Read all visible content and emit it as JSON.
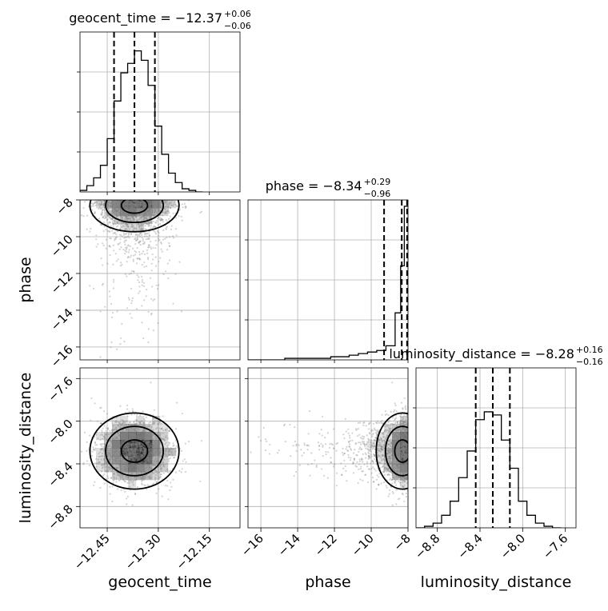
{
  "chart_data": {
    "type": "corner",
    "parameters": [
      "geocent_time",
      "phase",
      "luminosity_distance"
    ],
    "titles": [
      {
        "label": "geocent_time",
        "value": "−12.37",
        "plus": "+0.06",
        "minus": "−0.06"
      },
      {
        "label": "phase",
        "value": "−8.34",
        "plus": "+0.29",
        "minus": "−0.96"
      },
      {
        "label": "luminosity_distance",
        "value": "−8.28",
        "plus": "+0.16",
        "minus": "−0.16"
      }
    ],
    "xlabels": [
      "geocent_time",
      "phase",
      "luminosity_distance"
    ],
    "ylabels": [
      "",
      "phase",
      "luminosity_distance"
    ],
    "ranges": {
      "geocent_time": [
        -12.53,
        -12.06
      ],
      "phase": [
        -16.7,
        -8.0
      ],
      "luminosity_distance": [
        -9.0,
        -7.5
      ]
    },
    "ticks": {
      "geocent_time": [
        "−12.45",
        "−12.30",
        "−12.15"
      ],
      "phase": [
        "−16",
        "−14",
        "−12",
        "−10",
        "−8"
      ],
      "luminosity_distance": [
        "−8.8",
        "−8.4",
        "−8.0",
        "−7.6"
      ]
    },
    "tick_values": {
      "geocent_time": [
        -12.45,
        -12.3,
        -12.15
      ],
      "phase": [
        -16,
        -14,
        -12,
        -10,
        -8
      ],
      "luminosity_distance": [
        -8.8,
        -8.4,
        -8.0,
        -7.6
      ]
    },
    "quantiles": {
      "geocent_time": [
        -12.43,
        -12.37,
        -12.31
      ],
      "phase": [
        -9.3,
        -8.34,
        -8.05
      ],
      "luminosity_distance": [
        -8.44,
        -8.28,
        -8.12
      ]
    },
    "histograms": {
      "geocent_time": {
        "edges": [
          -12.53,
          -12.51,
          -12.49,
          -12.47,
          -12.45,
          -12.43,
          -12.41,
          -12.39,
          -12.37,
          -12.35,
          -12.33,
          -12.31,
          -12.29,
          -12.27,
          -12.25,
          -12.23,
          -12.21,
          -12.19,
          -12.17
        ],
        "counts": [
          0.01,
          0.04,
          0.09,
          0.17,
          0.34,
          0.58,
          0.76,
          0.82,
          0.9,
          0.84,
          0.68,
          0.42,
          0.24,
          0.12,
          0.06,
          0.02,
          0.01,
          0.0
        ]
      },
      "phase": {
        "edges": [
          -16.7,
          -16.2,
          -15.7,
          -15.2,
          -14.7,
          -14.2,
          -13.7,
          -13.2,
          -12.7,
          -12.2,
          -11.7,
          -11.2,
          -10.7,
          -10.2,
          -9.7,
          -9.2,
          -8.7,
          -8.4,
          -8.2,
          -8.0
        ],
        "counts": [
          0.0,
          0.0,
          0.0,
          0.0,
          0.01,
          0.01,
          0.01,
          0.01,
          0.01,
          0.02,
          0.02,
          0.03,
          0.04,
          0.05,
          0.06,
          0.09,
          0.3,
          0.6,
          0.98
        ]
      },
      "luminosity_distance": {
        "edges": [
          -9.0,
          -8.92,
          -8.84,
          -8.76,
          -8.68,
          -8.6,
          -8.52,
          -8.44,
          -8.36,
          -8.28,
          -8.2,
          -8.12,
          -8.04,
          -7.96,
          -7.88,
          -7.8,
          -7.72,
          -7.64
        ],
        "counts": [
          0.0,
          0.01,
          0.03,
          0.08,
          0.17,
          0.32,
          0.49,
          0.69,
          0.74,
          0.72,
          0.56,
          0.38,
          0.17,
          0.08,
          0.03,
          0.01,
          0.0
        ]
      }
    },
    "centers": {
      "geocent_time": -12.37,
      "phase": -8.3,
      "luminosity_distance": -8.28
    },
    "grid": true,
    "colors": {
      "hist": "#000000",
      "points": "#808080",
      "density": "#000000"
    }
  }
}
